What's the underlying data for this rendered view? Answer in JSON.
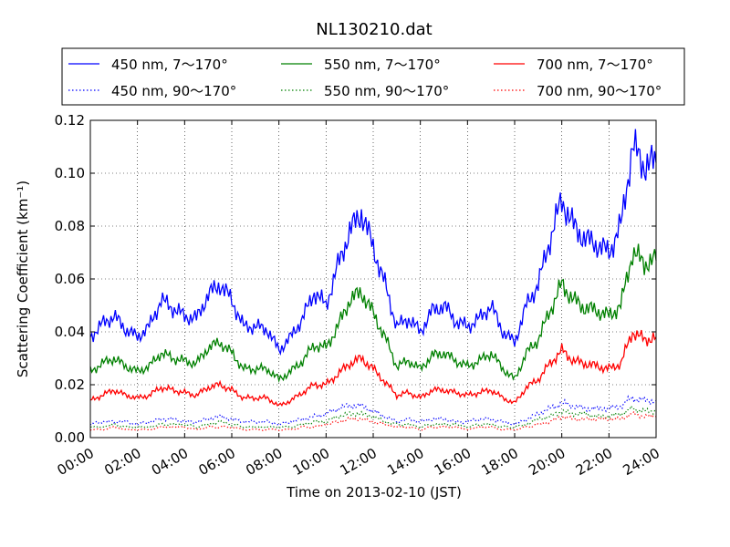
{
  "chart_data": {
    "type": "line",
    "title": "NL130210.dat",
    "xlabel": "Time on 2013-02-10 (JST)",
    "ylabel": "Scattering Coefficient (km⁻¹)",
    "xlim": [
      "00:00",
      "24:00"
    ],
    "ylim": [
      0,
      0.12
    ],
    "grid": true,
    "legend_position": "top",
    "x_ticks": [
      "00:00",
      "02:00",
      "04:00",
      "06:00",
      "08:00",
      "10:00",
      "12:00",
      "14:00",
      "16:00",
      "18:00",
      "20:00",
      "22:00",
      "24:00"
    ],
    "y_ticks": [
      "0.00",
      "0.02",
      "0.04",
      "0.06",
      "0.08",
      "0.10",
      "0.12"
    ],
    "x_hours": [
      0,
      0.5,
      1,
      1.5,
      2,
      2.5,
      3,
      3.5,
      4,
      4.5,
      5,
      5.5,
      6,
      6.5,
      7,
      7.5,
      8,
      8.5,
      9,
      9.5,
      10,
      10.5,
      11,
      11.5,
      12,
      12.5,
      13,
      13.5,
      14,
      14.5,
      15,
      15.5,
      16,
      16.5,
      17,
      17.5,
      18,
      18.5,
      19,
      19.5,
      20,
      20.5,
      21,
      21.5,
      22,
      22.5,
      23,
      23.5,
      24
    ],
    "series": [
      {
        "name": "450 nm, 7～170°",
        "color": "#0000ff",
        "style": "solid",
        "values": [
          0.038,
          0.043,
          0.046,
          0.041,
          0.038,
          0.042,
          0.052,
          0.049,
          0.046,
          0.045,
          0.054,
          0.058,
          0.052,
          0.042,
          0.042,
          0.041,
          0.033,
          0.038,
          0.045,
          0.055,
          0.05,
          0.065,
          0.078,
          0.085,
          0.072,
          0.058,
          0.042,
          0.045,
          0.04,
          0.048,
          0.05,
          0.044,
          0.042,
          0.045,
          0.05,
          0.04,
          0.036,
          0.05,
          0.058,
          0.075,
          0.09,
          0.08,
          0.075,
          0.073,
          0.07,
          0.08,
          0.11,
          0.103,
          0.104
        ]
      },
      {
        "name": "550 nm, 7～170°",
        "color": "#008000",
        "style": "solid",
        "values": [
          0.025,
          0.028,
          0.03,
          0.027,
          0.025,
          0.027,
          0.032,
          0.03,
          0.029,
          0.028,
          0.034,
          0.036,
          0.032,
          0.026,
          0.026,
          0.026,
          0.022,
          0.025,
          0.029,
          0.035,
          0.034,
          0.042,
          0.052,
          0.055,
          0.047,
          0.038,
          0.027,
          0.029,
          0.026,
          0.031,
          0.032,
          0.029,
          0.027,
          0.029,
          0.032,
          0.026,
          0.022,
          0.032,
          0.037,
          0.048,
          0.058,
          0.052,
          0.049,
          0.048,
          0.046,
          0.05,
          0.07,
          0.066,
          0.067
        ]
      },
      {
        "name": "700 nm, 7～170°",
        "color": "#ff0000",
        "style": "solid",
        "values": [
          0.014,
          0.016,
          0.018,
          0.016,
          0.015,
          0.016,
          0.019,
          0.018,
          0.017,
          0.016,
          0.019,
          0.02,
          0.018,
          0.015,
          0.015,
          0.015,
          0.012,
          0.014,
          0.017,
          0.02,
          0.02,
          0.024,
          0.028,
          0.03,
          0.026,
          0.021,
          0.016,
          0.017,
          0.015,
          0.018,
          0.018,
          0.017,
          0.016,
          0.017,
          0.018,
          0.015,
          0.013,
          0.019,
          0.022,
          0.028,
          0.033,
          0.029,
          0.028,
          0.027,
          0.026,
          0.028,
          0.04,
          0.037,
          0.038
        ]
      },
      {
        "name": "450 nm, 90～170°",
        "color": "#0000ff",
        "style": "dotted",
        "values": [
          0.005,
          0.006,
          0.006,
          0.006,
          0.005,
          0.006,
          0.007,
          0.007,
          0.006,
          0.006,
          0.007,
          0.008,
          0.007,
          0.006,
          0.006,
          0.006,
          0.005,
          0.006,
          0.007,
          0.008,
          0.009,
          0.011,
          0.012,
          0.012,
          0.01,
          0.008,
          0.006,
          0.007,
          0.006,
          0.007,
          0.007,
          0.006,
          0.006,
          0.007,
          0.007,
          0.006,
          0.005,
          0.007,
          0.009,
          0.011,
          0.013,
          0.012,
          0.011,
          0.011,
          0.011,
          0.012,
          0.015,
          0.014,
          0.014
        ]
      },
      {
        "name": "550 nm, 90～170°",
        "color": "#008000",
        "style": "dotted",
        "values": [
          0.004,
          0.004,
          0.005,
          0.004,
          0.004,
          0.004,
          0.005,
          0.005,
          0.005,
          0.004,
          0.005,
          0.006,
          0.005,
          0.004,
          0.004,
          0.004,
          0.004,
          0.004,
          0.005,
          0.006,
          0.006,
          0.008,
          0.009,
          0.009,
          0.008,
          0.006,
          0.005,
          0.005,
          0.004,
          0.005,
          0.005,
          0.005,
          0.004,
          0.005,
          0.005,
          0.004,
          0.004,
          0.005,
          0.007,
          0.008,
          0.01,
          0.009,
          0.009,
          0.008,
          0.008,
          0.009,
          0.011,
          0.01,
          0.01
        ]
      },
      {
        "name": "700 nm, 90～170°",
        "color": "#ff0000",
        "style": "dotted",
        "values": [
          0.003,
          0.003,
          0.004,
          0.003,
          0.003,
          0.003,
          0.004,
          0.004,
          0.004,
          0.003,
          0.004,
          0.004,
          0.004,
          0.003,
          0.003,
          0.003,
          0.003,
          0.003,
          0.004,
          0.004,
          0.005,
          0.006,
          0.007,
          0.007,
          0.006,
          0.005,
          0.004,
          0.004,
          0.003,
          0.004,
          0.004,
          0.004,
          0.003,
          0.004,
          0.004,
          0.003,
          0.003,
          0.004,
          0.005,
          0.006,
          0.008,
          0.007,
          0.007,
          0.007,
          0.007,
          0.007,
          0.009,
          0.008,
          0.008
        ]
      }
    ]
  }
}
